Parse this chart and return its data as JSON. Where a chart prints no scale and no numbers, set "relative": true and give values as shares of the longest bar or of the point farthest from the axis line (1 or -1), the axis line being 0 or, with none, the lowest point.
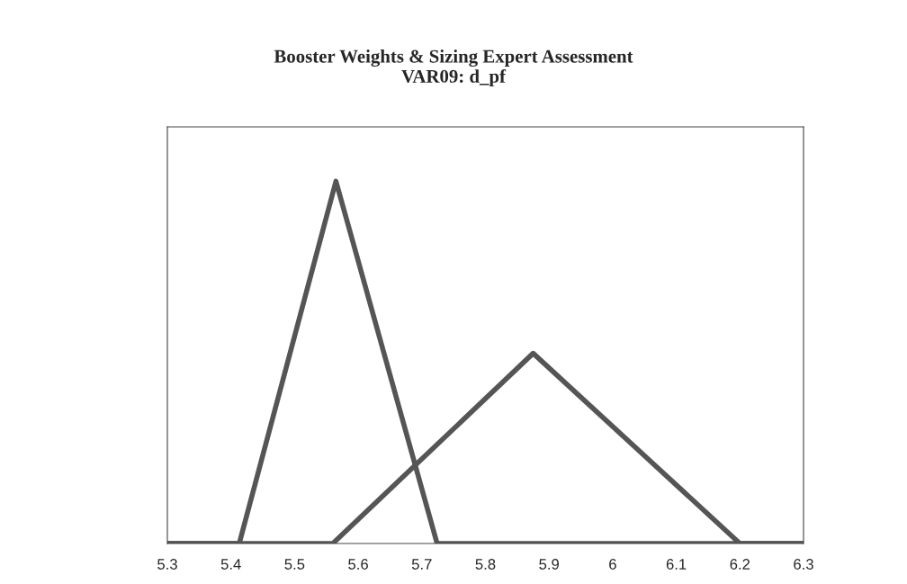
{
  "chart_data": {
    "type": "line",
    "title": "Booster Weights & Sizing Expert Assessment\nVAR09: d_pf",
    "relative": true,
    "series": [
      {
        "color": "#555555",
        "x": [
          5.3,
          5.413,
          5.565,
          5.724,
          6.3
        ],
        "values": [
          0,
          0,
          1,
          0,
          0
        ]
      },
      {
        "color": "#555555",
        "x": [
          5.3,
          5.56,
          5.875,
          6.2,
          6.3
        ],
        "values": [
          0,
          0,
          0.525,
          0,
          0
        ]
      }
    ],
    "xlim": [
      5.3,
      6.3
    ],
    "xticks": [
      5.3,
      5.4,
      5.5,
      5.6,
      5.7,
      5.8,
      5.9,
      6,
      6.1,
      6.2,
      6.3
    ],
    "grid": false,
    "legend": false,
    "marker": "none",
    "line_style": "solid"
  }
}
